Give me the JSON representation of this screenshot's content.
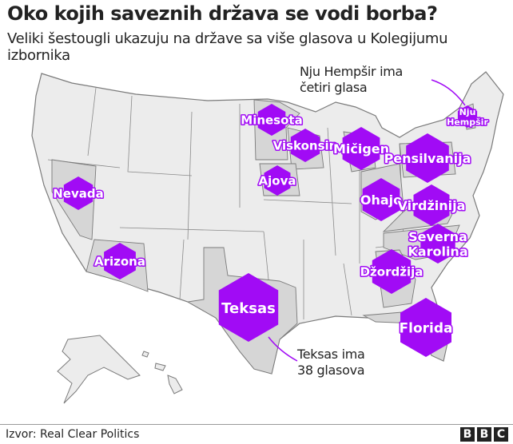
{
  "title": "Oko kojih saveznih država se vodi borba?",
  "subtitle": "Veliki šestougli ukazuju na države sa više glasova u Kolegijumu izbornika",
  "annotations": {
    "nh": [
      "Nju Hempšir ima",
      "četiri glasa"
    ],
    "tx": [
      "Teksas ima",
      "38 glasova"
    ]
  },
  "colors": {
    "hexagon": "#a10bf5",
    "battleground_state": "#d6d6d6",
    "other_state": "#ececec",
    "border": "#7a7a7a"
  },
  "states": [
    {
      "name": "Minesota"
    },
    {
      "name": "Viskonsin"
    },
    {
      "name": "Mičigen"
    },
    {
      "name": "Pensilvanija"
    },
    {
      "name": "Nju Hempšir"
    },
    {
      "name": "Ohajo"
    },
    {
      "name": "Virdžinija"
    },
    {
      "name": "Severna Karolina"
    },
    {
      "name": "Džordžija"
    },
    {
      "name": "Florida"
    },
    {
      "name": "Teksas"
    },
    {
      "name": "Arizona"
    },
    {
      "name": "Nevada"
    },
    {
      "name": "Ajova"
    }
  ],
  "source": "Izvor: Real Clear Politics",
  "logo": "BBC"
}
